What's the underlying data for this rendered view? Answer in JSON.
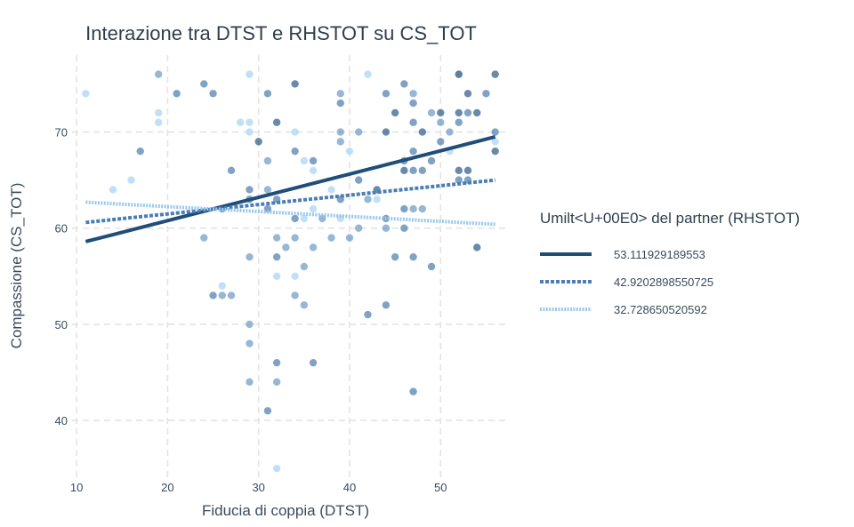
{
  "chart_data": {
    "type": "scatter",
    "title": "Interazione tra DTST e RHSTOT su CS_TOT",
    "xlabel": "Fiducia di coppia (DTST)",
    "ylabel": "Compassione (CS_TOT)",
    "xlim": [
      9.5,
      57.5
    ],
    "ylim": [
      34,
      78
    ],
    "xticks": [
      10,
      20,
      30,
      40,
      50
    ],
    "yticks": [
      40,
      50,
      60,
      70
    ],
    "grid": true,
    "legend": {
      "title": "Umilt<U+00E0> del partner (RHSTOT)",
      "placement": "right"
    },
    "lines": [
      {
        "name": "53.111929189553",
        "x": [
          11,
          56
        ],
        "y": [
          58.6,
          69.5
        ],
        "color": "#1f4e79",
        "style": "solid"
      },
      {
        "name": "42.9202898550725",
        "x": [
          11,
          56
        ],
        "y": [
          60.6,
          65.0
        ],
        "color": "#4a7eb5",
        "style": "dashed"
      },
      {
        "name": "32.728650520592",
        "x": [
          11,
          56
        ],
        "y": [
          62.7,
          60.4
        ],
        "color": "#9ac8ea",
        "style": "dotted"
      }
    ],
    "points": [
      [
        11,
        74,
        "#a9d4f5"
      ],
      [
        14,
        64,
        "#a9d4f5"
      ],
      [
        16,
        65,
        "#a9d4f5"
      ],
      [
        17,
        68,
        "#4f7fae"
      ],
      [
        19,
        76,
        "#6f9bc6"
      ],
      [
        19,
        72,
        "#a9d4f5"
      ],
      [
        19,
        71,
        "#a9d4f5"
      ],
      [
        21,
        74,
        "#4f7fae"
      ],
      [
        24,
        75,
        "#4f7fae"
      ],
      [
        25,
        74,
        "#4f7fae"
      ],
      [
        24,
        59,
        "#6f9bc6"
      ],
      [
        25,
        53,
        "#4f7fae"
      ],
      [
        26,
        53,
        "#6f9bc6"
      ],
      [
        27,
        53,
        "#6f9bc6"
      ],
      [
        26,
        54,
        "#a9d4f5"
      ],
      [
        26,
        62,
        "#4f7fae"
      ],
      [
        27,
        66,
        "#4f7fae"
      ],
      [
        28,
        71,
        "#a9d4f5"
      ],
      [
        29,
        71,
        "#a9d4f5"
      ],
      [
        29,
        70,
        "#a9d4f5"
      ],
      [
        29,
        76,
        "#a9d4f5"
      ],
      [
        29,
        64,
        "#4f7fae"
      ],
      [
        29,
        63,
        "#4f7fae"
      ],
      [
        29,
        57,
        "#6f9bc6"
      ],
      [
        29,
        50,
        "#6f9bc6"
      ],
      [
        29,
        48,
        "#6f9bc6"
      ],
      [
        29,
        44,
        "#6f9bc6"
      ],
      [
        30,
        69,
        "#2f5d8a"
      ],
      [
        31,
        74,
        "#4f7fae"
      ],
      [
        31,
        67,
        "#6f9bc6"
      ],
      [
        31,
        64,
        "#6f9bc6"
      ],
      [
        31,
        62,
        "#4f7fae"
      ],
      [
        31,
        41,
        "#4f7fae"
      ],
      [
        32,
        71,
        "#2f5d8a"
      ],
      [
        32,
        63,
        "#4f7fae"
      ],
      [
        32,
        59,
        "#6f9bc6"
      ],
      [
        32,
        57,
        "#4f7fae"
      ],
      [
        32,
        55,
        "#a9d4f5"
      ],
      [
        32,
        46,
        "#4f7fae"
      ],
      [
        32,
        44,
        "#6f9bc6"
      ],
      [
        32,
        35,
        "#a9d4f5"
      ],
      [
        33,
        58,
        "#6f9bc6"
      ],
      [
        34,
        75,
        "#2f5d8a"
      ],
      [
        34,
        70,
        "#a9d4f5"
      ],
      [
        34,
        68,
        "#4f7fae"
      ],
      [
        34,
        61,
        "#4f7fae"
      ],
      [
        34,
        59,
        "#6f9bc6"
      ],
      [
        34,
        55,
        "#a9d4f5"
      ],
      [
        34,
        53,
        "#6f9bc6"
      ],
      [
        35,
        67,
        "#a9d4f5"
      ],
      [
        35,
        61,
        "#a9d4f5"
      ],
      [
        35,
        56,
        "#6f9bc6"
      ],
      [
        35,
        52,
        "#6f9bc6"
      ],
      [
        36,
        67,
        "#4f7fae"
      ],
      [
        36,
        66,
        "#a9d4f5"
      ],
      [
        36,
        62,
        "#a9d4f5"
      ],
      [
        36,
        58,
        "#6f9bc6"
      ],
      [
        36,
        46,
        "#4f7fae"
      ],
      [
        37,
        61,
        "#6f9bc6"
      ],
      [
        38,
        64,
        "#a9d4f5"
      ],
      [
        38,
        59,
        "#6f9bc6"
      ],
      [
        39,
        74,
        "#6f9bc6"
      ],
      [
        39,
        73,
        "#4f7fae"
      ],
      [
        39,
        70,
        "#6f9bc6"
      ],
      [
        39,
        69,
        "#6f9bc6"
      ],
      [
        39,
        63,
        "#4f7fae"
      ],
      [
        39,
        61,
        "#a9d4f5"
      ],
      [
        40,
        68,
        "#a9d4f5"
      ],
      [
        40,
        59,
        "#6f9bc6"
      ],
      [
        41,
        70,
        "#6f9bc6"
      ],
      [
        41,
        65,
        "#4f7fae"
      ],
      [
        41,
        60,
        "#6f9bc6"
      ],
      [
        42,
        76,
        "#a9d4f5"
      ],
      [
        42,
        63,
        "#6f9bc6"
      ],
      [
        42,
        51,
        "#4f7fae"
      ],
      [
        43,
        64,
        "#2f5d8a"
      ],
      [
        43,
        63,
        "#a9d4f5"
      ],
      [
        44,
        74,
        "#4f7fae"
      ],
      [
        44,
        70,
        "#2f5d8a"
      ],
      [
        44,
        61,
        "#4f7fae"
      ],
      [
        44,
        60,
        "#6f9bc6"
      ],
      [
        44,
        52,
        "#4f7fae"
      ],
      [
        45,
        72,
        "#2f5d8a"
      ],
      [
        45,
        57,
        "#4f7fae"
      ],
      [
        46,
        75,
        "#4f7fae"
      ],
      [
        46,
        67,
        "#4f7fae"
      ],
      [
        46,
        66,
        "#2f5d8a"
      ],
      [
        46,
        62,
        "#4f7fae"
      ],
      [
        46,
        60,
        "#4f7fae"
      ],
      [
        47,
        74,
        "#6f9bc6"
      ],
      [
        47,
        73,
        "#4f7fae"
      ],
      [
        47,
        71,
        "#4f7fae"
      ],
      [
        47,
        68,
        "#4f7fae"
      ],
      [
        47,
        66,
        "#4f7fae"
      ],
      [
        47,
        62,
        "#6f9bc6"
      ],
      [
        47,
        57,
        "#4f7fae"
      ],
      [
        47,
        43,
        "#4f7fae"
      ],
      [
        48,
        70,
        "#2f5d8a"
      ],
      [
        48,
        66,
        "#4f7fae"
      ],
      [
        48,
        62,
        "#6f9bc6"
      ],
      [
        49,
        72,
        "#6f9bc6"
      ],
      [
        49,
        67,
        "#4f7fae"
      ],
      [
        49,
        56,
        "#4f7fae"
      ],
      [
        50,
        72,
        "#2f5d8a"
      ],
      [
        50,
        71,
        "#6f9bc6"
      ],
      [
        50,
        69,
        "#4f7fae"
      ],
      [
        51,
        70,
        "#6f9bc6"
      ],
      [
        51,
        68,
        "#a9d4f5"
      ],
      [
        52,
        76,
        "#1f4e79"
      ],
      [
        52,
        72,
        "#2f5d8a"
      ],
      [
        52,
        71,
        "#4f7fae"
      ],
      [
        52,
        66,
        "#2f5d8a"
      ],
      [
        52,
        65,
        "#4f7fae"
      ],
      [
        53,
        74,
        "#2f5d8a"
      ],
      [
        53,
        72,
        "#4f7fae"
      ],
      [
        53,
        66,
        "#2f5d8a"
      ],
      [
        53,
        65,
        "#4f7fae"
      ],
      [
        54,
        72,
        "#2f5d8a"
      ],
      [
        54,
        58,
        "#2f5d8a"
      ],
      [
        55,
        74,
        "#4f7fae"
      ],
      [
        56,
        76,
        "#2f5d8a"
      ],
      [
        56,
        70,
        "#4f7fae"
      ],
      [
        56,
        69,
        "#a9d4f5"
      ],
      [
        56,
        68,
        "#2f5d8a"
      ]
    ]
  }
}
